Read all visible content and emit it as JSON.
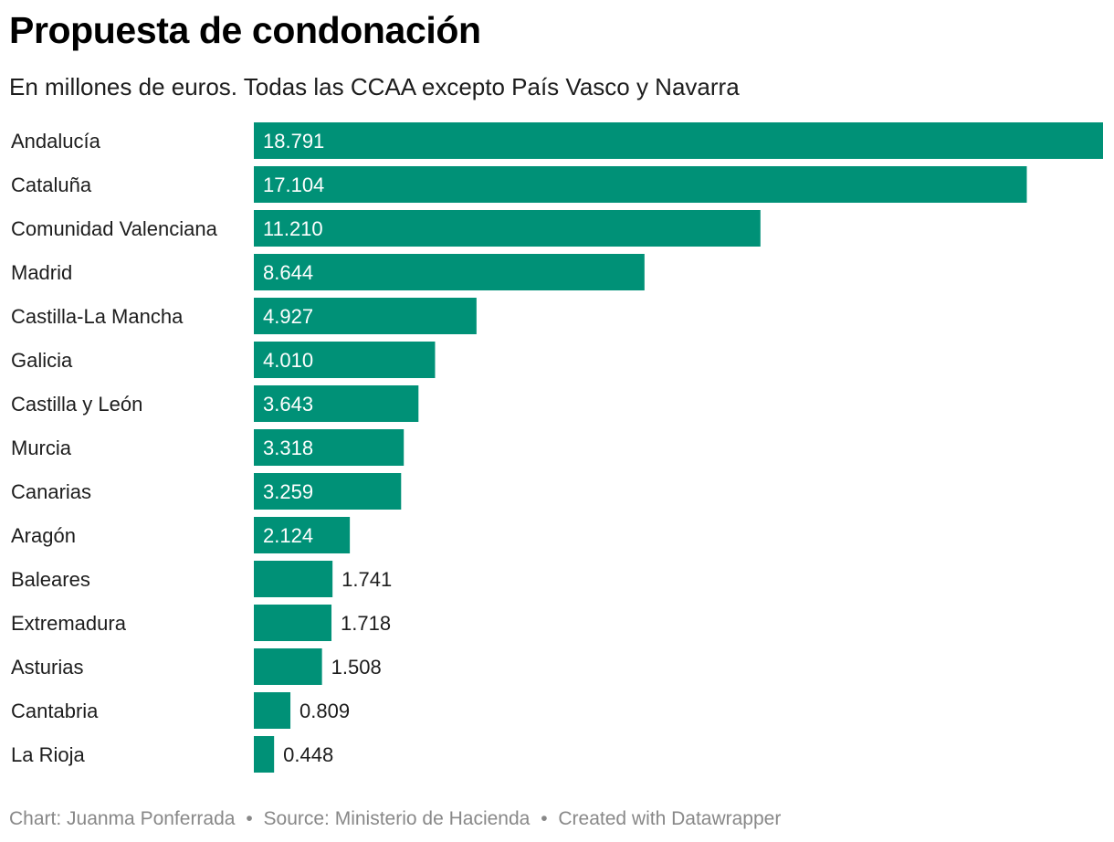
{
  "header": {
    "title": "Propuesta de condonación",
    "subtitle": "En millones de euros. Todas las CCAA excepto País Vasco y Navarra"
  },
  "footer": {
    "chart_credit": "Chart: Juanma Ponferrada",
    "source": "Source: Ministerio de Hacienda",
    "created_with": "Created with Datawrapper",
    "separator": "•"
  },
  "colors": {
    "bar": "#009177",
    "label_inside": "#ffffff",
    "label_outside": "#1d1d1d",
    "category_text": "#1d1d1d",
    "footer_text": "#888888"
  },
  "chart_data": {
    "type": "bar",
    "orientation": "horizontal",
    "title": "Propuesta de condonación",
    "subtitle": "En millones de euros. Todas las CCAA excepto País Vasco y Navarra",
    "xlabel": "",
    "ylabel": "",
    "grid": false,
    "xlim": [
      0,
      18791
    ],
    "categories": [
      "Andalucía",
      "Cataluña",
      "Comunidad Valenciana",
      "Madrid",
      "Castilla-La Mancha",
      "Galicia",
      "Castilla y León",
      "Murcia",
      "Canarias",
      "Aragón",
      "Baleares",
      "Extremadura",
      "Asturias",
      "Cantabria",
      "La Rioja"
    ],
    "values": [
      18791,
      17104,
      11210,
      8644,
      4927,
      4010,
      3643,
      3318,
      3259,
      2124,
      1741,
      1718,
      1508,
      809,
      448
    ],
    "value_labels": [
      "18.791",
      "17.104",
      "11.210",
      "8.644",
      "4.927",
      "4.010",
      "3.643",
      "3.318",
      "3.259",
      "2.124",
      "1.741",
      "1.718",
      "1.508",
      "0.809",
      "0.448"
    ]
  }
}
